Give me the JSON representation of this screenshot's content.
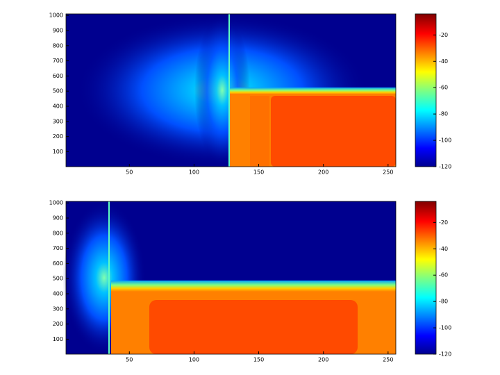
{
  "chart_data": [
    {
      "type": "contour",
      "xlim": [
        1,
        256
      ],
      "ylim": [
        1,
        1010
      ],
      "xticks": [
        50,
        100,
        150,
        200,
        250
      ],
      "yticks": [
        100,
        200,
        300,
        400,
        500,
        600,
        700,
        800,
        900,
        1000
      ],
      "colorbar": {
        "clim": [
          -120,
          -4
        ],
        "ticks": [
          -20,
          -40,
          -60,
          -80,
          -100,
          -120
        ]
      }
    },
    {
      "type": "contour",
      "xlim": [
        1,
        256
      ],
      "ylim": [
        1,
        1010
      ],
      "xticks": [
        50,
        100,
        150,
        200,
        250
      ],
      "yticks": [
        100,
        200,
        300,
        400,
        500,
        600,
        700,
        800,
        900,
        1000
      ],
      "colorbar": {
        "clim": [
          -120,
          -4
        ],
        "ticks": [
          -20,
          -40,
          -60,
          -80,
          -100,
          -120
        ]
      }
    }
  ]
}
